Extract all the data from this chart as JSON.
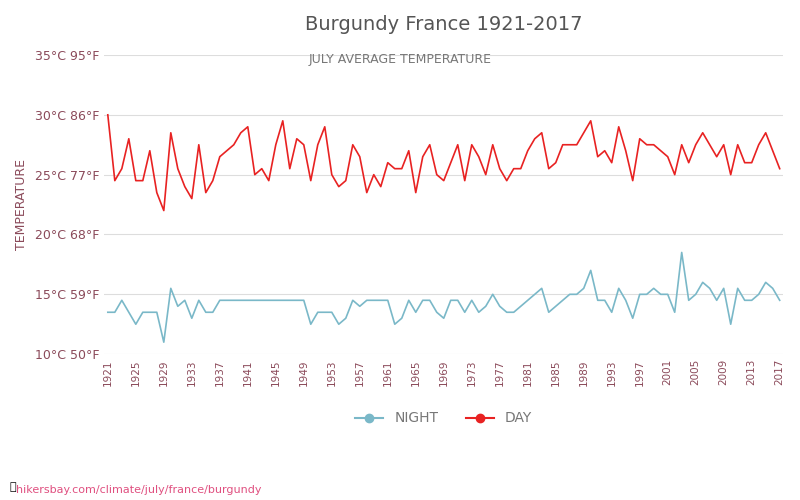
{
  "title": "Burgundy France 1921-2017",
  "subtitle": "JULY AVERAGE TEMPERATURE",
  "ylabel": "TEMPERATURE",
  "footer": "hikersbay.com/climate/july/france/burgundy",
  "ylim": [
    10,
    35
  ],
  "yticks_c": [
    10,
    15,
    20,
    25,
    30,
    35
  ],
  "years": [
    1921,
    1922,
    1923,
    1924,
    1925,
    1926,
    1927,
    1928,
    1929,
    1930,
    1931,
    1932,
    1933,
    1934,
    1935,
    1936,
    1937,
    1938,
    1939,
    1940,
    1941,
    1942,
    1943,
    1944,
    1945,
    1946,
    1947,
    1948,
    1949,
    1950,
    1951,
    1952,
    1953,
    1954,
    1955,
    1956,
    1957,
    1958,
    1959,
    1960,
    1961,
    1962,
    1963,
    1964,
    1965,
    1966,
    1967,
    1968,
    1969,
    1970,
    1971,
    1972,
    1973,
    1974,
    1975,
    1976,
    1977,
    1978,
    1979,
    1980,
    1981,
    1982,
    1983,
    1984,
    1985,
    1986,
    1987,
    1988,
    1989,
    1990,
    1991,
    1992,
    1993,
    1994,
    1995,
    1996,
    1997,
    1998,
    1999,
    2000,
    2001,
    2002,
    2003,
    2004,
    2005,
    2006,
    2007,
    2008,
    2009,
    2010,
    2011,
    2012,
    2013,
    2014,
    2015,
    2016,
    2017
  ],
  "day_temps": [
    30.0,
    24.5,
    25.5,
    28.0,
    24.5,
    24.5,
    27.0,
    23.5,
    22.0,
    28.5,
    25.5,
    24.0,
    23.0,
    27.5,
    23.5,
    24.5,
    26.5,
    27.0,
    27.5,
    28.5,
    29.0,
    25.0,
    25.5,
    24.5,
    27.5,
    29.5,
    25.5,
    28.0,
    27.5,
    24.5,
    27.5,
    29.0,
    25.0,
    24.0,
    24.5,
    27.5,
    26.5,
    23.5,
    25.0,
    24.0,
    26.0,
    25.5,
    25.5,
    27.0,
    23.5,
    26.5,
    27.5,
    25.0,
    24.5,
    26.0,
    27.5,
    24.5,
    27.5,
    26.5,
    25.0,
    27.5,
    25.5,
    24.5,
    25.5,
    25.5,
    27.0,
    28.0,
    28.5,
    25.5,
    26.0,
    27.5,
    27.5,
    27.5,
    28.5,
    29.5,
    26.5,
    27.0,
    26.0,
    29.0,
    27.0,
    24.5,
    28.0,
    27.5,
    27.5,
    27.0,
    26.5,
    25.0,
    27.5,
    26.0,
    27.5,
    28.5,
    27.5,
    26.5,
    27.5,
    25.0,
    27.5,
    26.0,
    26.0,
    27.5,
    28.5,
    27.0,
    25.5
  ],
  "night_temps": [
    13.5,
    13.5,
    14.5,
    13.5,
    12.5,
    13.5,
    13.5,
    13.5,
    11.0,
    15.5,
    14.0,
    14.5,
    13.0,
    14.5,
    13.5,
    13.5,
    14.5,
    14.5,
    14.5,
    14.5,
    14.5,
    14.5,
    14.5,
    14.5,
    14.5,
    14.5,
    14.5,
    14.5,
    14.5,
    12.5,
    13.5,
    13.5,
    13.5,
    12.5,
    13.0,
    14.5,
    14.0,
    14.5,
    14.5,
    14.5,
    14.5,
    12.5,
    13.0,
    14.5,
    13.5,
    14.5,
    14.5,
    13.5,
    13.0,
    14.5,
    14.5,
    13.5,
    14.5,
    13.5,
    14.0,
    15.0,
    14.0,
    13.5,
    13.5,
    14.0,
    14.5,
    15.0,
    15.5,
    13.5,
    14.0,
    14.5,
    15.0,
    15.0,
    15.5,
    17.0,
    14.5,
    14.5,
    13.5,
    15.5,
    14.5,
    13.0,
    15.0,
    15.0,
    15.5,
    15.0,
    15.0,
    13.5,
    18.5,
    14.5,
    15.0,
    16.0,
    15.5,
    14.5,
    15.5,
    12.5,
    15.5,
    14.5,
    14.5,
    15.0,
    16.0,
    15.5,
    14.5
  ],
  "day_color": "#e82222",
  "night_color": "#7ab8c8",
  "background_color": "#ffffff",
  "grid_color": "#dddddd",
  "title_color": "#555555",
  "subtitle_color": "#777777",
  "label_color": "#8b4a5a",
  "tick_color": "#8b4a5a",
  "footer_color": "#e05080",
  "legend_night_color": "#7ab8c8",
  "legend_day_color": "#e82222"
}
